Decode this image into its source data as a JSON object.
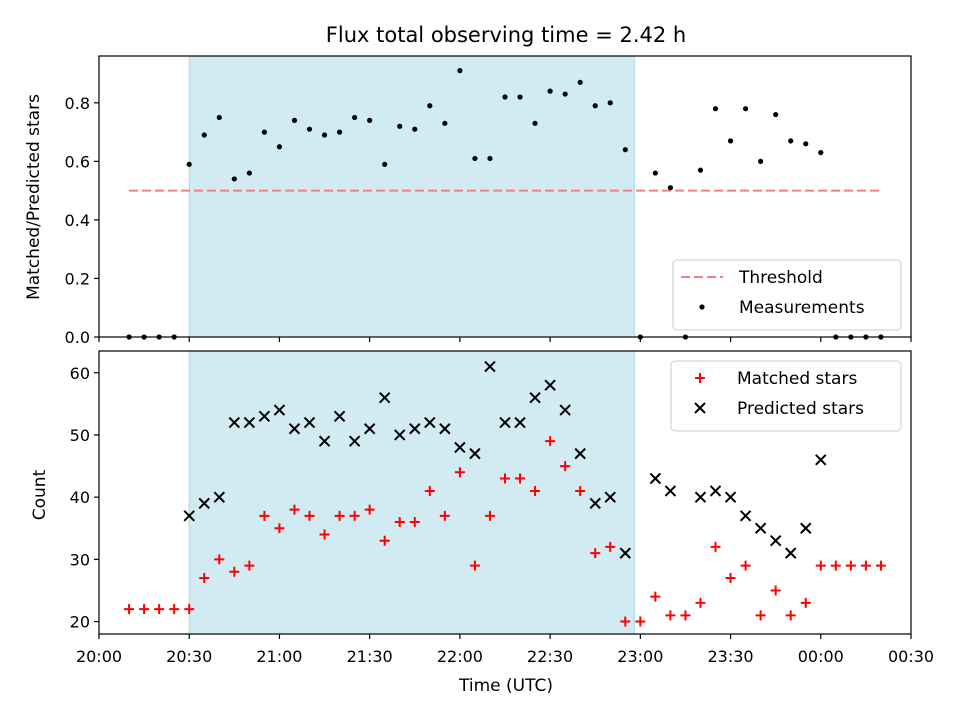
{
  "title": "Flux total observing time = 2.42 h",
  "colors": {
    "observing_window": "#add8e6",
    "threshold": "#f08080",
    "measurement": "#000000",
    "matched": "#ff0000",
    "predicted": "#000000"
  },
  "chart_data": [
    {
      "type": "scatter",
      "ylabel": "Matched/Predicted stars",
      "xlim": [
        "20:00",
        "00:30"
      ],
      "ylim": [
        0.0,
        0.96
      ],
      "yticks": [
        0.0,
        0.2,
        0.4,
        0.6,
        0.8
      ],
      "ytick_labels": [
        "0.0",
        "0.2",
        "0.4",
        "0.6",
        "0.8"
      ],
      "shaded_span": {
        "start": "20:30",
        "end": "22:58"
      },
      "legend": {
        "location": "lower-right",
        "entries": [
          "Threshold",
          "Measurements"
        ]
      },
      "threshold": {
        "name": "Threshold",
        "value": 0.5,
        "x_start": "20:10",
        "x_end": "00:20"
      },
      "series": [
        {
          "name": "Measurements",
          "x": [
            "20:10",
            "20:15",
            "20:20",
            "20:25",
            "20:30",
            "20:35",
            "20:40",
            "20:45",
            "20:50",
            "20:55",
            "21:00",
            "21:05",
            "21:10",
            "21:15",
            "21:20",
            "21:25",
            "21:30",
            "21:35",
            "21:40",
            "21:45",
            "21:50",
            "21:55",
            "22:00",
            "22:05",
            "22:10",
            "22:15",
            "22:20",
            "22:25",
            "22:30",
            "22:35",
            "22:40",
            "22:45",
            "22:50",
            "22:55",
            "23:00",
            "23:05",
            "23:10",
            "23:15",
            "23:20",
            "23:25",
            "23:30",
            "23:35",
            "23:40",
            "23:45",
            "23:50",
            "23:55",
            "00:00",
            "00:05",
            "00:10",
            "00:15",
            "00:20"
          ],
          "y": [
            0.0,
            0.0,
            0.0,
            0.0,
            0.59,
            0.69,
            0.75,
            0.54,
            0.56,
            0.7,
            0.65,
            0.74,
            0.71,
            0.69,
            0.7,
            0.75,
            0.74,
            0.59,
            0.72,
            0.71,
            0.79,
            0.73,
            0.91,
            0.61,
            0.61,
            0.82,
            0.82,
            0.73,
            0.84,
            0.83,
            0.87,
            0.79,
            0.8,
            0.64,
            0.0,
            0.56,
            0.51,
            0.0,
            0.57,
            0.78,
            0.67,
            0.78,
            0.6,
            0.76,
            0.67,
            0.66,
            0.63,
            0.0,
            0.0,
            0.0,
            0.0
          ]
        }
      ]
    },
    {
      "type": "scatter",
      "xlabel": "Time (UTC)",
      "ylabel": "Count",
      "xlim": [
        "20:00",
        "00:30"
      ],
      "ylim": [
        18,
        63.5
      ],
      "yticks": [
        20,
        30,
        40,
        50,
        60
      ],
      "ytick_labels": [
        "20",
        "30",
        "40",
        "50",
        "60"
      ],
      "xticks": [
        "20:00",
        "20:30",
        "21:00",
        "21:30",
        "22:00",
        "22:30",
        "23:00",
        "23:30",
        "00:00",
        "00:30"
      ],
      "shaded_span": {
        "start": "20:30",
        "end": "22:58"
      },
      "legend": {
        "location": "upper-right",
        "entries": [
          "Matched stars",
          "Predicted stars"
        ]
      },
      "series": [
        {
          "name": "Matched stars",
          "x": [
            "20:10",
            "20:15",
            "20:20",
            "20:25",
            "20:30",
            "20:35",
            "20:40",
            "20:45",
            "20:50",
            "20:55",
            "21:00",
            "21:05",
            "21:10",
            "21:15",
            "21:20",
            "21:25",
            "21:30",
            "21:35",
            "21:40",
            "21:45",
            "21:50",
            "21:55",
            "22:00",
            "22:05",
            "22:10",
            "22:15",
            "22:20",
            "22:25",
            "22:30",
            "22:35",
            "22:40",
            "22:45",
            "22:50",
            "22:55",
            "23:00",
            "23:05",
            "23:10",
            "23:15",
            "23:20",
            "23:25",
            "23:30",
            "23:35",
            "23:40",
            "23:45",
            "23:50",
            "23:55",
            "00:00",
            "00:05",
            "00:10",
            "00:15",
            "00:20"
          ],
          "y": [
            22,
            22,
            22,
            22,
            22,
            27,
            30,
            28,
            29,
            37,
            35,
            38,
            37,
            34,
            37,
            37,
            38,
            33,
            36,
            36,
            41,
            37,
            44,
            29,
            37,
            43,
            43,
            41,
            49,
            45,
            41,
            31,
            32,
            20,
            20,
            24,
            21,
            21,
            23,
            32,
            27,
            29,
            21,
            25,
            21,
            23,
            29,
            29,
            29,
            29,
            29
          ]
        },
        {
          "name": "Predicted stars",
          "x": [
            "20:30",
            "20:35",
            "20:40",
            "20:45",
            "20:50",
            "20:55",
            "21:00",
            "21:05",
            "21:10",
            "21:15",
            "21:20",
            "21:25",
            "21:30",
            "21:35",
            "21:40",
            "21:45",
            "21:50",
            "21:55",
            "22:00",
            "22:05",
            "22:10",
            "22:15",
            "22:20",
            "22:25",
            "22:30",
            "22:35",
            "22:40",
            "22:45",
            "22:50",
            "22:55",
            "23:05",
            "23:10",
            "23:20",
            "23:25",
            "23:30",
            "23:35",
            "23:40",
            "23:45",
            "23:50",
            "23:55",
            "00:00"
          ],
          "y": [
            37,
            39,
            40,
            52,
            52,
            53,
            54,
            51,
            52,
            49,
            53,
            49,
            51,
            56,
            50,
            51,
            52,
            51,
            48,
            47,
            61,
            52,
            52,
            56,
            58,
            54,
            47,
            39,
            40,
            31,
            43,
            41,
            40,
            41,
            40,
            37,
            35,
            33,
            31,
            35,
            46
          ]
        }
      ]
    }
  ]
}
